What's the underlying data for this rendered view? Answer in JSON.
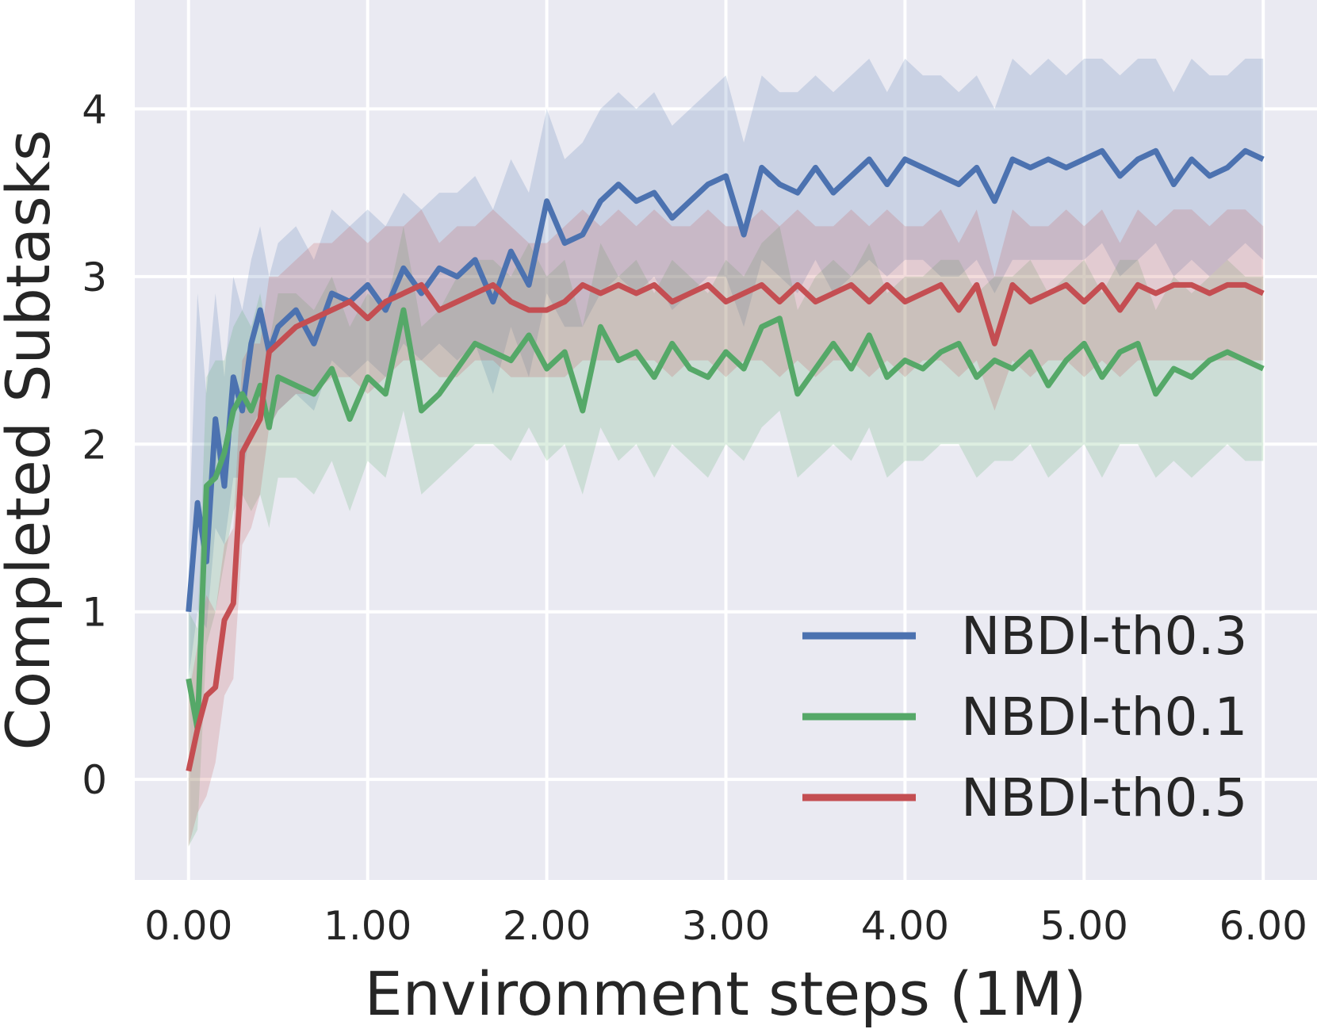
{
  "chart_data": {
    "type": "line",
    "title": "",
    "xlabel": "Environment steps (1M)",
    "ylabel": "Completed Subtasks",
    "xlim": [
      -0.3,
      6.3
    ],
    "ylim": [
      -0.6,
      4.65
    ],
    "xticks": [
      0,
      1,
      2,
      3,
      4,
      5,
      6
    ],
    "xtick_labels": [
      "0.00",
      "1.00",
      "2.00",
      "3.00",
      "4.00",
      "5.00",
      "6.00"
    ],
    "yticks": [
      0,
      1,
      2,
      3,
      4
    ],
    "ytick_labels": [
      "0",
      "1",
      "2",
      "3",
      "4"
    ],
    "grid": true,
    "legend_position": "lower-right",
    "background_color": "#eaeaf2",
    "series": [
      {
        "name": "NBDI-th0.3",
        "color": "#4c72b0",
        "x": [
          0.0,
          0.05,
          0.1,
          0.15,
          0.2,
          0.25,
          0.3,
          0.35,
          0.4,
          0.45,
          0.5,
          0.6,
          0.7,
          0.8,
          0.9,
          1.0,
          1.1,
          1.2,
          1.3,
          1.4,
          1.5,
          1.6,
          1.7,
          1.8,
          1.9,
          2.0,
          2.1,
          2.2,
          2.3,
          2.4,
          2.5,
          2.6,
          2.7,
          2.8,
          2.9,
          3.0,
          3.1,
          3.2,
          3.3,
          3.4,
          3.5,
          3.6,
          3.7,
          3.8,
          3.9,
          4.0,
          4.1,
          4.2,
          4.3,
          4.4,
          4.5,
          4.6,
          4.7,
          4.8,
          4.9,
          5.0,
          5.1,
          5.2,
          5.3,
          5.4,
          5.5,
          5.6,
          5.7,
          5.8,
          5.9,
          6.0
        ],
        "y": [
          1.0,
          1.65,
          1.3,
          2.15,
          1.75,
          2.4,
          2.2,
          2.6,
          2.8,
          2.55,
          2.7,
          2.8,
          2.6,
          2.9,
          2.85,
          2.95,
          2.8,
          3.05,
          2.9,
          3.05,
          3.0,
          3.1,
          2.85,
          3.15,
          2.95,
          3.45,
          3.2,
          3.25,
          3.45,
          3.55,
          3.45,
          3.5,
          3.35,
          3.45,
          3.55,
          3.6,
          3.25,
          3.65,
          3.55,
          3.5,
          3.65,
          3.5,
          3.6,
          3.7,
          3.55,
          3.7,
          3.65,
          3.6,
          3.55,
          3.65,
          3.45,
          3.7,
          3.65,
          3.7,
          3.65,
          3.7,
          3.75,
          3.6,
          3.7,
          3.75,
          3.55,
          3.7,
          3.6,
          3.65,
          3.75,
          3.7
        ],
        "y_lower": [
          0.6,
          1.0,
          0.9,
          1.5,
          1.4,
          1.8,
          1.8,
          2.1,
          2.2,
          2.1,
          2.2,
          2.3,
          2.2,
          2.5,
          2.4,
          2.5,
          2.4,
          2.6,
          2.5,
          2.6,
          2.5,
          2.6,
          2.3,
          2.7,
          2.4,
          2.9,
          2.7,
          2.7,
          2.9,
          3.0,
          2.9,
          3.0,
          2.8,
          2.9,
          3.0,
          3.0,
          2.7,
          3.1,
          3.0,
          2.9,
          3.1,
          2.9,
          3.0,
          3.1,
          3.0,
          3.1,
          3.1,
          3.0,
          3.0,
          3.1,
          2.9,
          3.1,
          3.1,
          3.1,
          3.1,
          3.1,
          3.2,
          3.0,
          3.1,
          3.2,
          3.0,
          3.1,
          3.0,
          3.1,
          3.2,
          3.1
        ],
        "y_upper": [
          1.4,
          2.9,
          2.3,
          2.9,
          2.4,
          3.0,
          2.8,
          3.1,
          3.3,
          3.0,
          3.2,
          3.3,
          3.1,
          3.4,
          3.3,
          3.4,
          3.3,
          3.5,
          3.4,
          3.5,
          3.5,
          3.6,
          3.4,
          3.7,
          3.5,
          4.0,
          3.7,
          3.8,
          4.0,
          4.1,
          4.0,
          4.1,
          3.9,
          4.0,
          4.1,
          4.2,
          3.8,
          4.2,
          4.1,
          4.1,
          4.2,
          4.1,
          4.2,
          4.3,
          4.1,
          4.3,
          4.2,
          4.2,
          4.1,
          4.2,
          4.0,
          4.3,
          4.2,
          4.3,
          4.2,
          4.3,
          4.3,
          4.2,
          4.3,
          4.3,
          4.1,
          4.3,
          4.2,
          4.2,
          4.3,
          4.3
        ]
      },
      {
        "name": "NBDI-th0.1",
        "color": "#55a868",
        "x": [
          0.0,
          0.05,
          0.1,
          0.15,
          0.2,
          0.25,
          0.3,
          0.35,
          0.4,
          0.45,
          0.5,
          0.6,
          0.7,
          0.8,
          0.9,
          1.0,
          1.1,
          1.2,
          1.3,
          1.4,
          1.5,
          1.6,
          1.7,
          1.8,
          1.9,
          2.0,
          2.1,
          2.2,
          2.3,
          2.4,
          2.5,
          2.6,
          2.7,
          2.8,
          2.9,
          3.0,
          3.1,
          3.2,
          3.3,
          3.4,
          3.5,
          3.6,
          3.7,
          3.8,
          3.9,
          4.0,
          4.1,
          4.2,
          4.3,
          4.4,
          4.5,
          4.6,
          4.7,
          4.8,
          4.9,
          5.0,
          5.1,
          5.2,
          5.3,
          5.4,
          5.5,
          5.6,
          5.7,
          5.8,
          5.9,
          6.0
        ],
        "y": [
          0.6,
          0.3,
          1.75,
          1.8,
          1.95,
          2.2,
          2.3,
          2.2,
          2.35,
          2.1,
          2.4,
          2.35,
          2.3,
          2.45,
          2.15,
          2.4,
          2.3,
          2.8,
          2.2,
          2.3,
          2.45,
          2.6,
          2.55,
          2.5,
          2.65,
          2.45,
          2.55,
          2.2,
          2.7,
          2.5,
          2.55,
          2.4,
          2.6,
          2.45,
          2.4,
          2.55,
          2.45,
          2.7,
          2.75,
          2.3,
          2.45,
          2.6,
          2.45,
          2.65,
          2.4,
          2.5,
          2.45,
          2.55,
          2.6,
          2.4,
          2.5,
          2.45,
          2.55,
          2.35,
          2.5,
          2.6,
          2.4,
          2.55,
          2.6,
          2.3,
          2.45,
          2.4,
          2.5,
          2.55,
          2.5,
          2.45
        ],
        "y_lower": [
          -0.4,
          -0.3,
          0.8,
          1.0,
          1.3,
          1.6,
          1.7,
          1.6,
          1.7,
          1.5,
          1.8,
          1.8,
          1.7,
          1.9,
          1.6,
          1.9,
          1.8,
          2.2,
          1.7,
          1.8,
          1.9,
          2.0,
          2.0,
          1.9,
          2.1,
          1.9,
          2.0,
          1.7,
          2.1,
          1.9,
          2.0,
          1.8,
          2.0,
          1.9,
          1.8,
          2.0,
          1.9,
          2.1,
          2.2,
          1.8,
          1.9,
          2.0,
          1.9,
          2.1,
          1.8,
          1.9,
          1.9,
          2.0,
          2.0,
          1.8,
          1.9,
          1.9,
          2.0,
          1.8,
          1.9,
          2.0,
          1.8,
          2.0,
          2.0,
          1.8,
          1.9,
          1.8,
          1.9,
          2.0,
          1.9,
          1.9
        ],
        "y_upper": [
          1.0,
          0.9,
          2.4,
          2.5,
          2.5,
          2.7,
          2.8,
          2.7,
          2.9,
          2.6,
          2.9,
          2.9,
          2.8,
          3.0,
          2.7,
          2.9,
          2.8,
          3.3,
          2.7,
          2.8,
          3.0,
          3.1,
          3.1,
          3.0,
          3.2,
          3.0,
          3.1,
          2.7,
          3.2,
          3.0,
          3.1,
          2.9,
          3.1,
          3.0,
          2.9,
          3.1,
          3.0,
          3.2,
          3.3,
          2.8,
          3.0,
          3.1,
          3.0,
          3.2,
          2.9,
          3.0,
          3.0,
          3.1,
          3.1,
          2.9,
          3.0,
          3.0,
          3.1,
          2.9,
          3.0,
          3.1,
          2.9,
          3.1,
          3.1,
          2.8,
          3.0,
          2.9,
          3.0,
          3.1,
          3.0,
          3.0
        ]
      },
      {
        "name": "NBDI-th0.5",
        "color": "#c44e52",
        "x": [
          0.0,
          0.05,
          0.1,
          0.15,
          0.2,
          0.25,
          0.3,
          0.35,
          0.4,
          0.45,
          0.5,
          0.6,
          0.7,
          0.8,
          0.9,
          1.0,
          1.1,
          1.2,
          1.3,
          1.4,
          1.5,
          1.6,
          1.7,
          1.8,
          1.9,
          2.0,
          2.1,
          2.2,
          2.3,
          2.4,
          2.5,
          2.6,
          2.7,
          2.8,
          2.9,
          3.0,
          3.1,
          3.2,
          3.3,
          3.4,
          3.5,
          3.6,
          3.7,
          3.8,
          3.9,
          4.0,
          4.1,
          4.2,
          4.3,
          4.4,
          4.5,
          4.6,
          4.7,
          4.8,
          4.9,
          5.0,
          5.1,
          5.2,
          5.3,
          5.4,
          5.5,
          5.6,
          5.7,
          5.8,
          5.9,
          6.0
        ],
        "y": [
          0.05,
          0.3,
          0.5,
          0.55,
          0.95,
          1.05,
          1.95,
          2.05,
          2.15,
          2.55,
          2.6,
          2.7,
          2.75,
          2.8,
          2.85,
          2.75,
          2.85,
          2.9,
          2.95,
          2.8,
          2.85,
          2.9,
          2.95,
          2.85,
          2.8,
          2.8,
          2.85,
          2.95,
          2.9,
          2.95,
          2.9,
          2.95,
          2.85,
          2.9,
          2.95,
          2.85,
          2.9,
          2.95,
          2.85,
          2.95,
          2.85,
          2.9,
          2.95,
          2.85,
          2.95,
          2.85,
          2.9,
          2.95,
          2.8,
          2.95,
          2.6,
          2.95,
          2.85,
          2.9,
          2.95,
          2.85,
          2.95,
          2.8,
          2.95,
          2.9,
          2.95,
          2.95,
          2.9,
          2.95,
          2.95,
          2.9
        ],
        "y_lower": [
          -0.4,
          -0.2,
          -0.1,
          0.1,
          0.5,
          0.6,
          1.4,
          1.5,
          1.7,
          2.1,
          2.2,
          2.3,
          2.3,
          2.4,
          2.4,
          2.3,
          2.4,
          2.5,
          2.5,
          2.4,
          2.4,
          2.5,
          2.5,
          2.4,
          2.4,
          2.4,
          2.4,
          2.5,
          2.5,
          2.5,
          2.5,
          2.5,
          2.4,
          2.5,
          2.5,
          2.4,
          2.5,
          2.5,
          2.4,
          2.5,
          2.4,
          2.5,
          2.5,
          2.4,
          2.5,
          2.4,
          2.5,
          2.5,
          2.4,
          2.5,
          2.2,
          2.5,
          2.4,
          2.5,
          2.5,
          2.4,
          2.5,
          2.4,
          2.5,
          2.5,
          2.5,
          2.5,
          2.5,
          2.5,
          2.5,
          2.5
        ],
        "y_upper": [
          0.5,
          0.8,
          1.1,
          1.0,
          1.4,
          1.5,
          2.5,
          2.6,
          2.6,
          3.0,
          3.0,
          3.1,
          3.2,
          3.2,
          3.3,
          3.2,
          3.3,
          3.3,
          3.4,
          3.2,
          3.3,
          3.3,
          3.4,
          3.3,
          3.2,
          3.2,
          3.3,
          3.4,
          3.3,
          3.4,
          3.3,
          3.4,
          3.3,
          3.3,
          3.4,
          3.3,
          3.3,
          3.4,
          3.3,
          3.4,
          3.3,
          3.3,
          3.4,
          3.3,
          3.4,
          3.3,
          3.3,
          3.4,
          3.2,
          3.4,
          3.0,
          3.4,
          3.3,
          3.3,
          3.4,
          3.3,
          3.4,
          3.2,
          3.4,
          3.3,
          3.4,
          3.4,
          3.3,
          3.4,
          3.4,
          3.3
        ]
      }
    ]
  }
}
